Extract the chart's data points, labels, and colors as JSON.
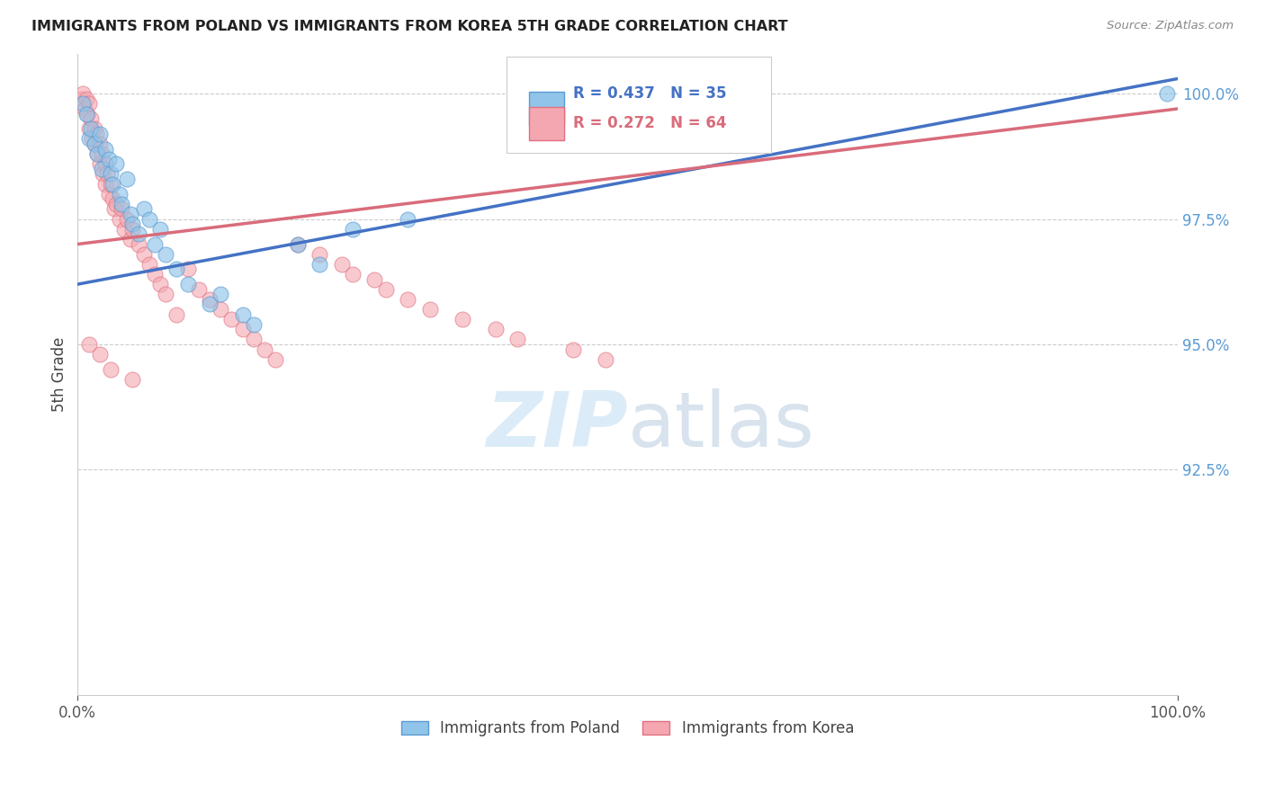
{
  "title": "IMMIGRANTS FROM POLAND VS IMMIGRANTS FROM KOREA 5TH GRADE CORRELATION CHART",
  "source": "Source: ZipAtlas.com",
  "ylabel": "5th Grade",
  "xlim": [
    0.0,
    1.0
  ],
  "ylim": [
    0.88,
    1.008
  ],
  "y_tick_positions": [
    0.925,
    0.95,
    0.975,
    1.0
  ],
  "y_tick_labels": [
    "92.5%",
    "95.0%",
    "97.5%",
    "100.0%"
  ],
  "legend_poland": "R = 0.437   N = 35",
  "legend_korea": "R = 0.272   N = 64",
  "color_poland_fill": "#90c4e8",
  "color_poland_edge": "#5b9bd5",
  "color_korea_fill": "#f4a7b0",
  "color_korea_edge": "#e07080",
  "color_poland_line": "#4472c4",
  "color_korea_line": "#d96c7b",
  "color_right_axis": "#5b9bd5",
  "color_grid": "#cccccc",
  "watermark_color": "#d8eaf8",
  "poland_x": [
    0.005,
    0.008,
    0.01,
    0.012,
    0.015,
    0.018,
    0.02,
    0.022,
    0.025,
    0.028,
    0.03,
    0.032,
    0.035,
    0.038,
    0.04,
    0.045,
    0.048,
    0.05,
    0.055,
    0.06,
    0.065,
    0.07,
    0.075,
    0.08,
    0.09,
    0.1,
    0.12,
    0.13,
    0.15,
    0.16,
    0.2,
    0.22,
    0.25,
    0.3,
    0.99
  ],
  "poland_y": [
    0.998,
    0.996,
    0.991,
    0.993,
    0.99,
    0.988,
    0.992,
    0.985,
    0.989,
    0.987,
    0.984,
    0.982,
    0.986,
    0.98,
    0.978,
    0.983,
    0.976,
    0.974,
    0.972,
    0.977,
    0.975,
    0.97,
    0.973,
    0.968,
    0.965,
    0.962,
    0.958,
    0.96,
    0.956,
    0.954,
    0.97,
    0.966,
    0.973,
    0.975,
    1.0
  ],
  "korea_x": [
    0.003,
    0.005,
    0.006,
    0.008,
    0.009,
    0.01,
    0.01,
    0.012,
    0.013,
    0.015,
    0.015,
    0.017,
    0.018,
    0.02,
    0.02,
    0.022,
    0.023,
    0.025,
    0.025,
    0.027,
    0.028,
    0.03,
    0.032,
    0.033,
    0.035,
    0.038,
    0.04,
    0.042,
    0.045,
    0.048,
    0.05,
    0.055,
    0.06,
    0.065,
    0.07,
    0.075,
    0.08,
    0.09,
    0.1,
    0.11,
    0.12,
    0.13,
    0.14,
    0.15,
    0.16,
    0.17,
    0.18,
    0.2,
    0.22,
    0.24,
    0.25,
    0.27,
    0.28,
    0.3,
    0.32,
    0.35,
    0.38,
    0.4,
    0.45,
    0.48,
    0.01,
    0.02,
    0.03,
    0.05
  ],
  "korea_y": [
    0.999,
    1.0,
    0.997,
    0.999,
    0.996,
    0.998,
    0.993,
    0.995,
    0.991,
    0.993,
    0.99,
    0.992,
    0.988,
    0.99,
    0.986,
    0.988,
    0.984,
    0.986,
    0.982,
    0.984,
    0.98,
    0.982,
    0.979,
    0.977,
    0.978,
    0.975,
    0.977,
    0.973,
    0.975,
    0.971,
    0.973,
    0.97,
    0.968,
    0.966,
    0.964,
    0.962,
    0.96,
    0.956,
    0.965,
    0.961,
    0.959,
    0.957,
    0.955,
    0.953,
    0.951,
    0.949,
    0.947,
    0.97,
    0.968,
    0.966,
    0.964,
    0.963,
    0.961,
    0.959,
    0.957,
    0.955,
    0.953,
    0.951,
    0.949,
    0.947,
    0.95,
    0.948,
    0.945,
    0.943
  ],
  "poland_line_x": [
    0.0,
    1.0
  ],
  "poland_line_y": [
    0.962,
    1.003
  ],
  "korea_line_x": [
    0.0,
    1.0
  ],
  "korea_line_y": [
    0.97,
    0.997
  ]
}
